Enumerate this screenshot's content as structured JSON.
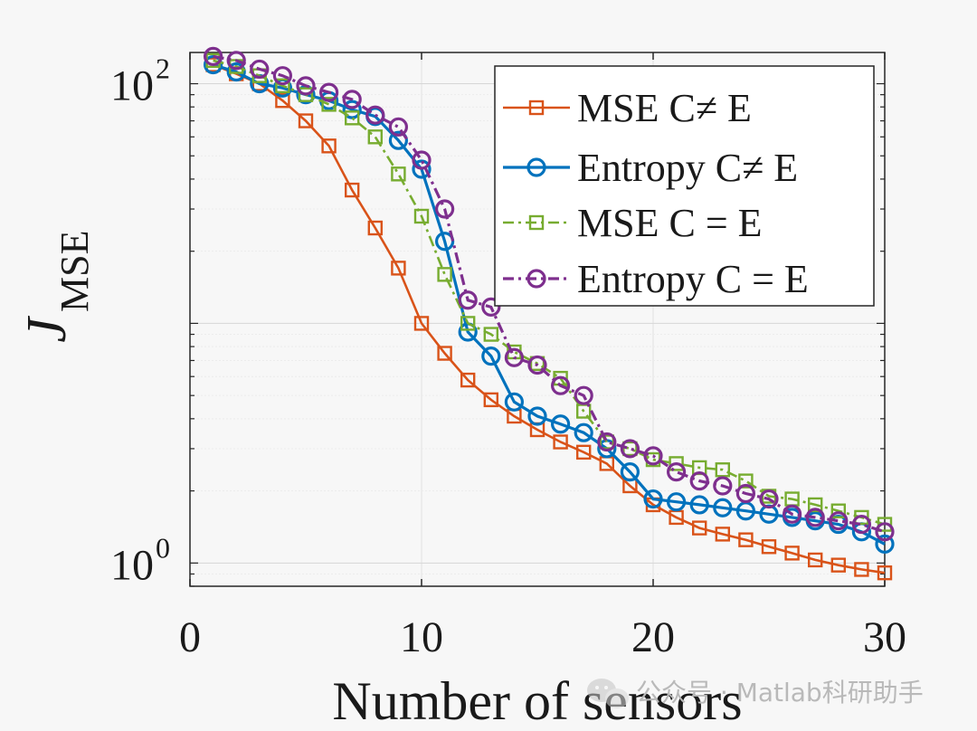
{
  "chart_data": {
    "type": "line",
    "title": "",
    "xlabel": "Number of sensors",
    "ylabel": "J",
    "ylabel_subscript": "MSE",
    "xlim": [
      0,
      30
    ],
    "ylim": [
      0.8,
      135
    ],
    "yscale": "log",
    "xticks": [
      "0",
      "10",
      "20",
      "30"
    ],
    "yticks": [
      {
        "base": "10",
        "exp": "0"
      },
      {
        "base": "10",
        "exp": "2"
      }
    ],
    "grid": true,
    "legend_position": "top-right",
    "x": [
      1,
      2,
      3,
      4,
      5,
      6,
      7,
      8,
      9,
      10,
      11,
      12,
      13,
      14,
      15,
      16,
      17,
      18,
      19,
      20,
      21,
      22,
      23,
      24,
      25,
      26,
      27,
      28,
      29,
      30
    ],
    "series": [
      {
        "name": "MSE C≠ E",
        "color": "#d95319",
        "marker": "square",
        "dash": "solid",
        "values": [
          120,
          110,
          100,
          85,
          70,
          55,
          36,
          25,
          17,
          10,
          7.5,
          5.8,
          4.8,
          4.1,
          3.6,
          3.2,
          2.9,
          2.6,
          2.1,
          1.75,
          1.55,
          1.4,
          1.32,
          1.25,
          1.17,
          1.1,
          1.03,
          0.98,
          0.94,
          0.91
        ]
      },
      {
        "name": "Entropy C≠ E",
        "color": "#0072bd",
        "marker": "circle",
        "dash": "solid",
        "values": [
          120,
          112,
          100,
          96,
          90,
          85,
          78,
          73,
          58,
          44,
          22,
          9.2,
          7.3,
          4.7,
          4.1,
          3.8,
          3.5,
          3.0,
          2.4,
          1.85,
          1.8,
          1.75,
          1.7,
          1.65,
          1.6,
          1.55,
          1.5,
          1.45,
          1.35,
          1.2
        ]
      },
      {
        "name": "MSE C = E",
        "color": "#77ac30",
        "marker": "square",
        "dash": "dashdot",
        "values": [
          125,
          118,
          108,
          98,
          90,
          82,
          72,
          60,
          42,
          28,
          16,
          10,
          9,
          7.6,
          6.8,
          5.9,
          4.3,
          3.2,
          3.0,
          2.7,
          2.6,
          2.5,
          2.45,
          2.2,
          1.9,
          1.85,
          1.75,
          1.65,
          1.55,
          1.45
        ]
      },
      {
        "name": "Entropy C = E",
        "color": "#7e2f8e",
        "marker": "circle",
        "dash": "dashdot",
        "values": [
          130,
          125,
          115,
          108,
          98,
          92,
          86,
          74,
          66,
          48,
          30,
          12.5,
          11.7,
          7.2,
          6.7,
          5.5,
          5.0,
          3.2,
          3.0,
          2.8,
          2.4,
          2.2,
          2.1,
          1.95,
          1.85,
          1.6,
          1.55,
          1.5,
          1.45,
          1.35
        ]
      }
    ]
  },
  "watermark": {
    "text": "公众号 · Matlab科研助手",
    "icon": "wechat-icon"
  }
}
